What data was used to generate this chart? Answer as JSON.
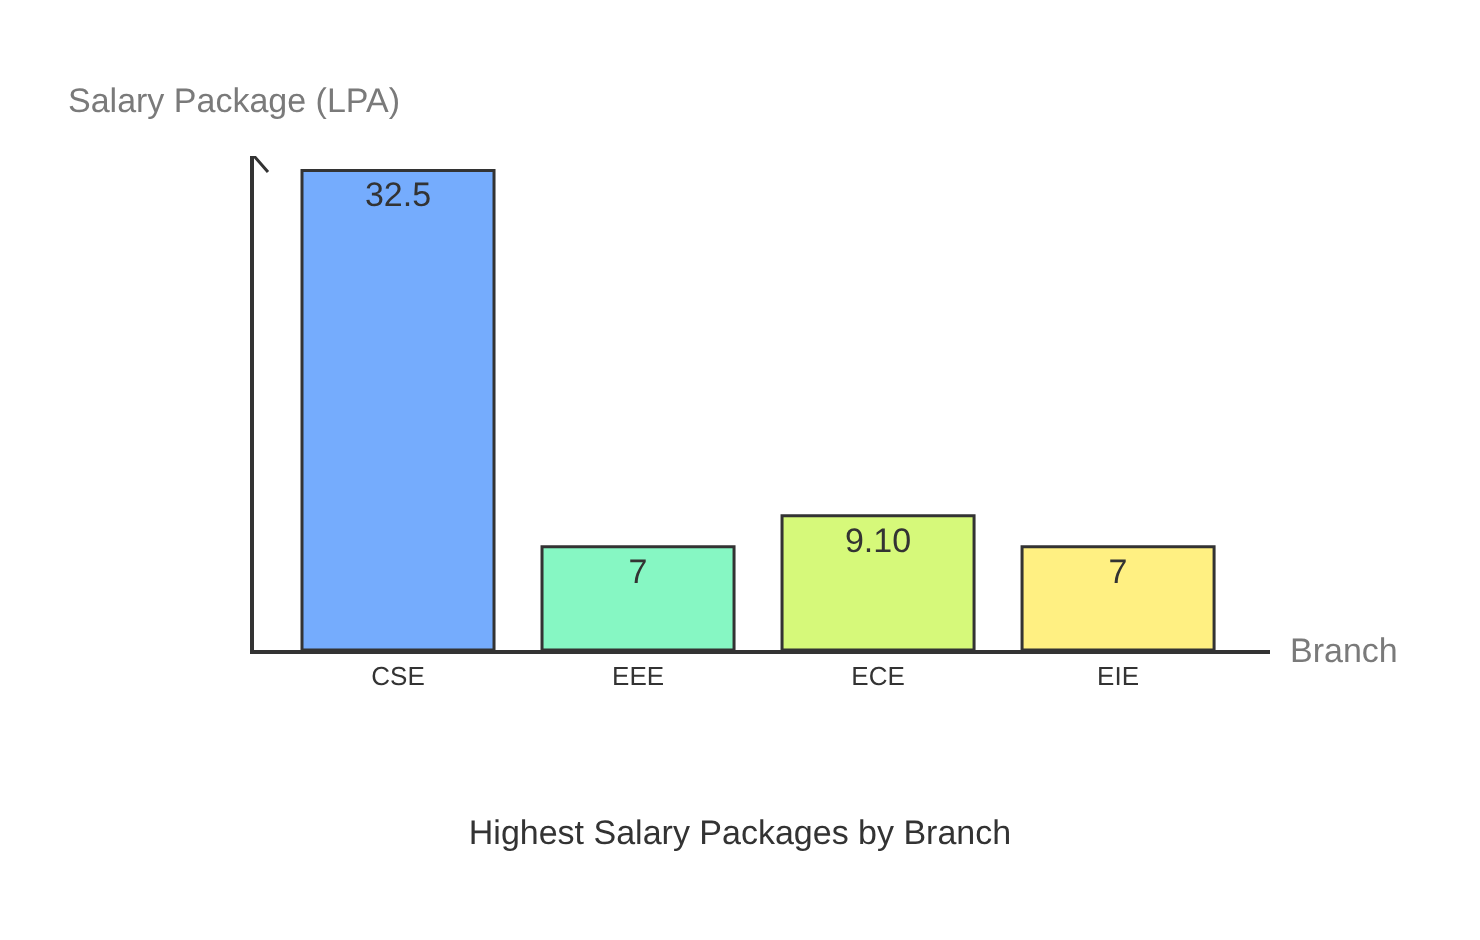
{
  "chart_data": {
    "type": "bar",
    "title": "Highest Salary Packages by Branch",
    "xlabel": "Branch",
    "ylabel": "Salary Package (LPA)",
    "categories": [
      "CSE",
      "EEE",
      "ECE",
      "EIE"
    ],
    "values": [
      32.5,
      7,
      9.1,
      7
    ],
    "value_labels": [
      "32.5",
      "7",
      "9.10",
      "7"
    ],
    "colors": [
      "#75acfd",
      "#86f7c3",
      "#d6f97a",
      "#fff082"
    ],
    "legend": false,
    "tick_labels": "x"
  }
}
